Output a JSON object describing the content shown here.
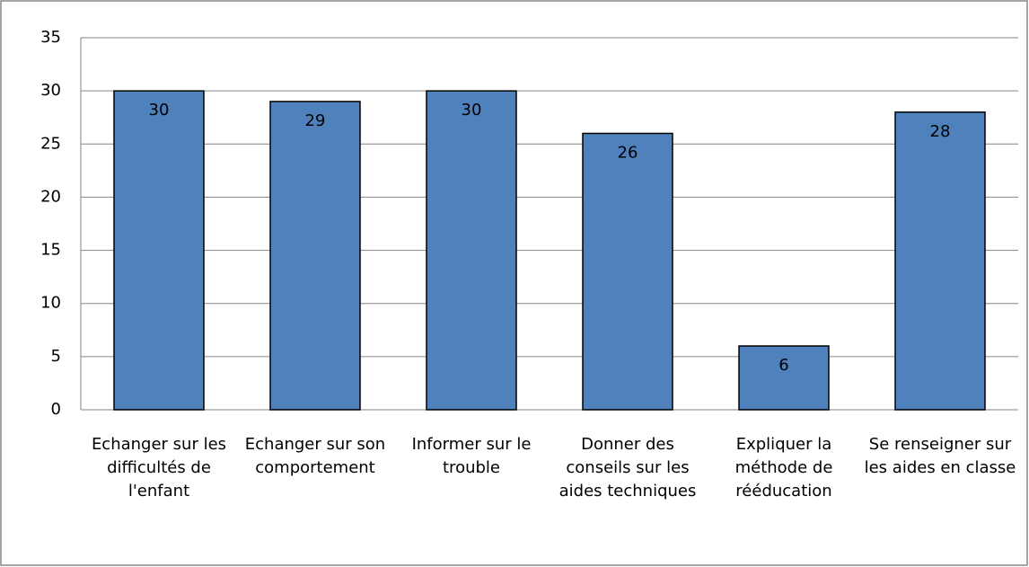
{
  "chart_data": {
    "type": "bar",
    "categories": [
      "Echanger sur les difficultés de l'enfant",
      "Echanger sur son comportement",
      "Informer sur le trouble",
      "Donner des conseils sur les aides techniques",
      "Expliquer la méthode de rééducation",
      "Se renseigner sur les aides en classe"
    ],
    "values": [
      30,
      29,
      30,
      26,
      6,
      28
    ],
    "color": "#4f81bd",
    "ylim": [
      0,
      35
    ],
    "yticks": [
      0,
      5,
      10,
      15,
      20,
      25,
      30,
      35
    ],
    "grid": true
  }
}
